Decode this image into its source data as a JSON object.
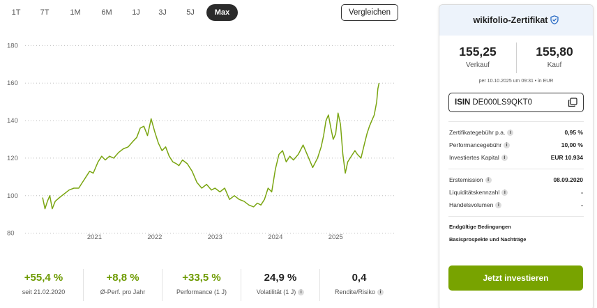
{
  "range_tabs": [
    {
      "label": "1T"
    },
    {
      "label": "7T"
    },
    {
      "label": "1M"
    },
    {
      "label": "6M"
    },
    {
      "label": "1J"
    },
    {
      "label": "3J"
    },
    {
      "label": "5J"
    },
    {
      "label": "Max"
    }
  ],
  "active_range": "Max",
  "compare_label": "Vergleichen",
  "chart_data": {
    "type": "line",
    "title": "",
    "xlabel": "",
    "ylabel": "",
    "y_ticks": [
      80,
      100,
      120,
      140,
      160,
      180
    ],
    "ylim": [
      78,
      182
    ],
    "x_tick_labels": [
      "2021",
      "2022",
      "2023",
      "2024",
      "2025"
    ],
    "x_tick_values": [
      2021.0,
      2022.0,
      2023.0,
      2024.0,
      2025.0
    ],
    "xlim": [
      2019.85,
      2025.98
    ],
    "grid": "horizontal-dotted",
    "color": "#7aa511",
    "series": [
      {
        "x": [
          2020.14,
          2020.18,
          2020.22,
          2020.26,
          2020.3,
          2020.35,
          2020.42,
          2020.5,
          2020.58,
          2020.66,
          2020.74,
          2020.8,
          2020.86,
          2020.92,
          2020.98,
          2021.06,
          2021.12,
          2021.18,
          2021.25,
          2021.32,
          2021.4,
          2021.48,
          2021.56,
          2021.64,
          2021.7,
          2021.76,
          2021.82,
          2021.88,
          2021.94,
          2022.0,
          2022.06,
          2022.12,
          2022.18,
          2022.24,
          2022.3,
          2022.36,
          2022.4,
          2022.46,
          2022.54,
          2022.62,
          2022.7,
          2022.78,
          2022.86,
          2022.94,
          2023.0,
          2023.08,
          2023.16,
          2023.24,
          2023.32,
          2023.4,
          2023.48,
          2023.56,
          2023.64,
          2023.7,
          2023.76,
          2023.82,
          2023.88,
          2023.94,
          2024.0,
          2024.06,
          2024.12,
          2024.18,
          2024.24,
          2024.3,
          2024.38,
          2024.46,
          2024.54,
          2024.62,
          2024.7,
          2024.76,
          2024.8,
          2024.84,
          2024.88,
          2024.92,
          2024.96,
          2025.0,
          2025.04,
          2025.08,
          2025.12,
          2025.16,
          2025.2,
          2025.24,
          2025.28,
          2025.32,
          2025.36,
          2025.42,
          2025.48,
          2025.52,
          2025.56,
          2025.6,
          2025.64,
          2025.68,
          2025.7,
          2025.72
        ],
        "y": [
          99,
          93,
          97,
          100,
          93,
          97,
          99,
          101,
          103,
          104,
          104,
          107,
          110,
          113,
          112,
          118,
          121,
          119,
          121,
          120,
          123,
          125,
          126,
          129,
          131,
          136,
          137,
          132,
          141,
          134,
          128,
          124,
          126,
          121,
          118,
          117,
          116,
          119,
          117,
          113,
          107,
          104,
          106,
          103,
          104,
          102,
          104,
          98,
          100,
          98,
          97,
          95,
          94,
          96,
          95,
          98,
          104,
          102,
          114,
          122,
          124,
          118,
          121,
          119,
          122,
          127,
          121,
          115,
          120,
          126,
          132,
          140,
          143,
          136,
          130,
          133,
          144,
          138,
          122,
          112,
          118,
          120,
          122,
          124,
          122,
          120,
          128,
          133,
          137,
          140,
          143,
          150,
          157,
          160
        ]
      }
    ]
  },
  "stats": [
    {
      "value": "+55,4 %",
      "label": "seit 21.02.2020",
      "tone": "pos",
      "info": false
    },
    {
      "value": "+8,8 %",
      "label": "Ø-Perf. pro Jahr",
      "tone": "pos",
      "info": false
    },
    {
      "value": "+33,5 %",
      "label": "Performance (1 J)",
      "tone": "pos",
      "info": false
    },
    {
      "value": "24,9 %",
      "label": "Volatilität (1 J)",
      "tone": "neu",
      "info": true
    },
    {
      "value": "0,4",
      "label": "Rendite/Risiko",
      "tone": "neu",
      "info": true
    }
  ],
  "panel": {
    "title": "wikifolio-Zertifikat",
    "sell_price": "155,25",
    "sell_label": "Verkauf",
    "buy_price": "155,80",
    "buy_label": "Kauf",
    "timestamp": "per 10.10.2025 um 09:31  •  in EUR",
    "isin_label": "ISIN",
    "isin_value": "DE000LS9QKT0",
    "fees": [
      {
        "key": "Zertifikategebühr p.a.",
        "value": "0,95 %"
      },
      {
        "key": "Performancegebühr",
        "value": "10,00 %"
      },
      {
        "key": "Investiertes Kapital",
        "value": "EUR 10.934"
      }
    ],
    "details": [
      {
        "key": "Erstemission",
        "value": "08.09.2020"
      },
      {
        "key": "Liquiditätskennzahl",
        "value": "-"
      },
      {
        "key": "Handelsvolumen",
        "value": "-"
      }
    ],
    "docs": [
      "Endgültige Bedingungen",
      "Basisprospekte und Nachträge"
    ],
    "invest_label": "Jetzt investieren"
  },
  "colors": {
    "accent_green": "#78a300",
    "line_green": "#7aa511",
    "panel_header_bg": "#edf3fb",
    "shield_blue": "#2b6cc4"
  }
}
